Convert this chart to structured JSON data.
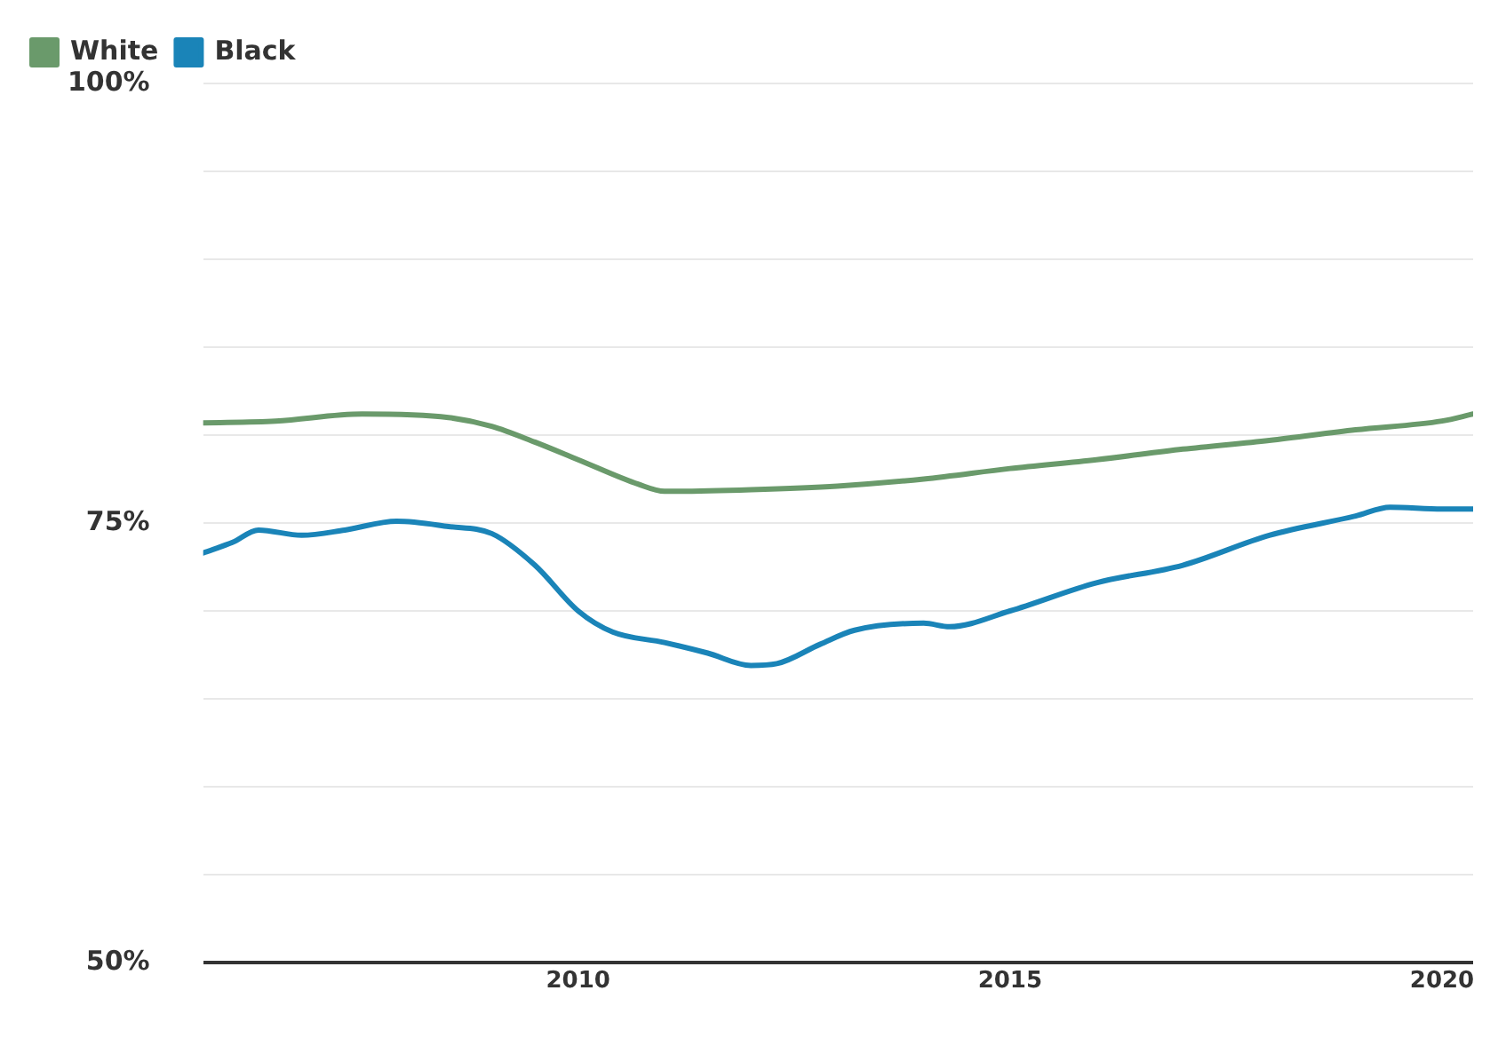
{
  "chart_data": {
    "type": "line",
    "legend": "top left",
    "grid": "y",
    "marker": "none",
    "line_style": "solid",
    "xlim": [
      2005.66,
      2020.36
    ],
    "xticks": [
      2010,
      2015,
      2020
    ],
    "ylim": [
      50,
      100
    ],
    "yticks": [
      {
        "value": 50,
        "label": "50%"
      },
      {
        "value": 55,
        "label": null
      },
      {
        "value": 60,
        "label": null
      },
      {
        "value": 65,
        "label": null
      },
      {
        "value": 70,
        "label": null
      },
      {
        "value": 75,
        "label": "75%"
      },
      {
        "value": 80,
        "label": null
      },
      {
        "value": 85,
        "label": null
      },
      {
        "value": 90,
        "label": null
      },
      {
        "value": 95,
        "label": null
      },
      {
        "value": 100,
        "label": "100%"
      }
    ],
    "series": [
      {
        "name": "White",
        "color": "#6a9a6b",
        "x": [
          2005.66,
          2006.5,
          2007.5,
          2008.5,
          2009,
          2009.5,
          2010,
          2010.7,
          2011,
          2012,
          2013,
          2014,
          2015,
          2016,
          2017,
          2018,
          2019,
          2020,
          2020.36
        ],
        "values": [
          80.7,
          80.8,
          81.2,
          81.0,
          80.5,
          79.6,
          78.6,
          77.2,
          76.8,
          76.9,
          77.1,
          77.5,
          78.1,
          78.6,
          79.2,
          79.7,
          80.3,
          80.8,
          81.2
        ]
      },
      {
        "name": "Black",
        "color": "#1a84b8",
        "x": [
          2005.66,
          2006,
          2006.3,
          2006.8,
          2007.3,
          2007.9,
          2008.5,
          2009,
          2009.5,
          2010,
          2010.4,
          2011,
          2011.5,
          2012,
          2012.3,
          2012.8,
          2013.2,
          2014,
          2014.3,
          2015,
          2016,
          2017,
          2018,
          2019,
          2019.4,
          2020,
          2020.36
        ],
        "values": [
          73.3,
          73.9,
          74.6,
          74.3,
          74.6,
          75.1,
          74.8,
          74.4,
          72.6,
          70.0,
          68.8,
          68.2,
          67.6,
          66.9,
          67.0,
          68.1,
          68.9,
          69.3,
          69.1,
          70.0,
          71.6,
          72.6,
          74.3,
          75.4,
          75.9,
          75.8,
          75.8
        ]
      }
    ]
  }
}
